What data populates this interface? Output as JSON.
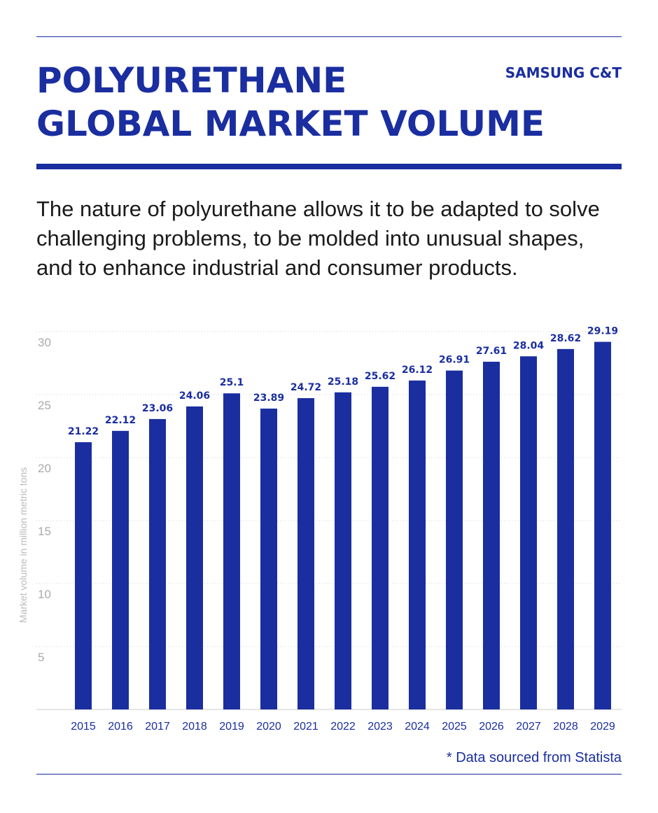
{
  "header": {
    "title_line1": "POLYURETHANE",
    "title_line2": "GLOBAL MARKET VOLUME",
    "brand": "SAMSUNG C&T"
  },
  "description": "The nature of polyurethane allows it to be adapted to solve challenging problems, to be molded into unusual shapes, and to enhance industrial and consumer products.",
  "footnote": "* Data sourced from Statista",
  "colors": {
    "accent": "#1a2ea0",
    "bar": "#1a2ea0",
    "axis_text": "#aaaaaa"
  },
  "chart_data": {
    "type": "bar",
    "categories": [
      "2015",
      "2016",
      "2017",
      "2018",
      "2019",
      "2020",
      "2021",
      "2022",
      "2023",
      "2024",
      "2025",
      "2026",
      "2027",
      "2028",
      "2029"
    ],
    "values": [
      21.22,
      22.12,
      23.06,
      24.06,
      25.1,
      23.89,
      24.72,
      25.18,
      25.62,
      26.12,
      26.91,
      27.61,
      28.04,
      28.62,
      29.19
    ],
    "data_labels": [
      "21.22",
      "22.12",
      "23.06",
      "24.06",
      "25.1",
      "23.89",
      "24.72",
      "25.18",
      "25.62",
      "26.12",
      "26.91",
      "27.61",
      "28.04",
      "28.62",
      "29.19"
    ],
    "title": "",
    "xlabel": "",
    "ylabel": "Market volume in million metric tons",
    "ylim": [
      0,
      30
    ],
    "yticks": [
      5,
      10,
      15,
      20,
      25,
      30
    ],
    "grid": "dotted horizontal",
    "legend": "none"
  }
}
